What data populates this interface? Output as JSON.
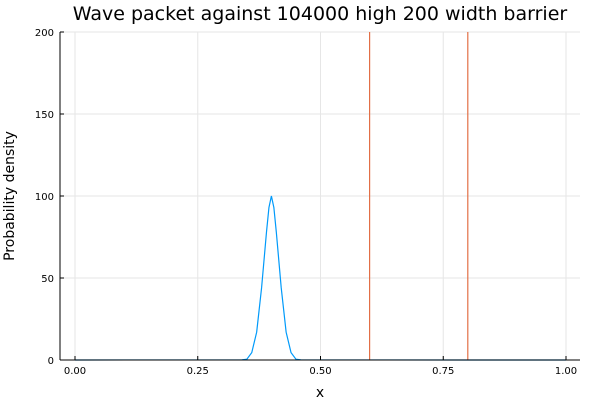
{
  "chart_data": {
    "type": "line",
    "title": "Wave packet against 104000 high 200 width barrier",
    "xlabel": "x",
    "ylabel": "Probability density",
    "xlim": [
      0.0,
      1.0
    ],
    "ylim": [
      0,
      200
    ],
    "x_ticks": [
      0.0,
      0.25,
      0.5,
      0.75,
      1.0
    ],
    "x_tick_labels": [
      "0.00",
      "0.25",
      "0.50",
      "0.75",
      "1.00"
    ],
    "y_ticks": [
      0,
      50,
      100,
      150,
      200
    ],
    "y_tick_labels": [
      "0",
      "50",
      "100",
      "150",
      "200"
    ],
    "grid": true,
    "legend": "none",
    "series": [
      {
        "color": "#009AFA",
        "x": [
          0.0,
          0.34,
          0.35,
          0.36,
          0.37,
          0.38,
          0.39,
          0.395,
          0.4,
          0.405,
          0.41,
          0.42,
          0.43,
          0.44,
          0.45,
          0.46,
          0.6,
          0.8,
          1.0
        ],
        "y": [
          0,
          0.1,
          0.5,
          4.5,
          17,
          44,
          78,
          93,
          100,
          93,
          78,
          44,
          17,
          4.5,
          0.5,
          0.1,
          0.05,
          0.02,
          0
        ]
      }
    ],
    "barrier": {
      "color": "#E26F46",
      "x_positions": [
        0.6,
        0.8
      ]
    }
  }
}
